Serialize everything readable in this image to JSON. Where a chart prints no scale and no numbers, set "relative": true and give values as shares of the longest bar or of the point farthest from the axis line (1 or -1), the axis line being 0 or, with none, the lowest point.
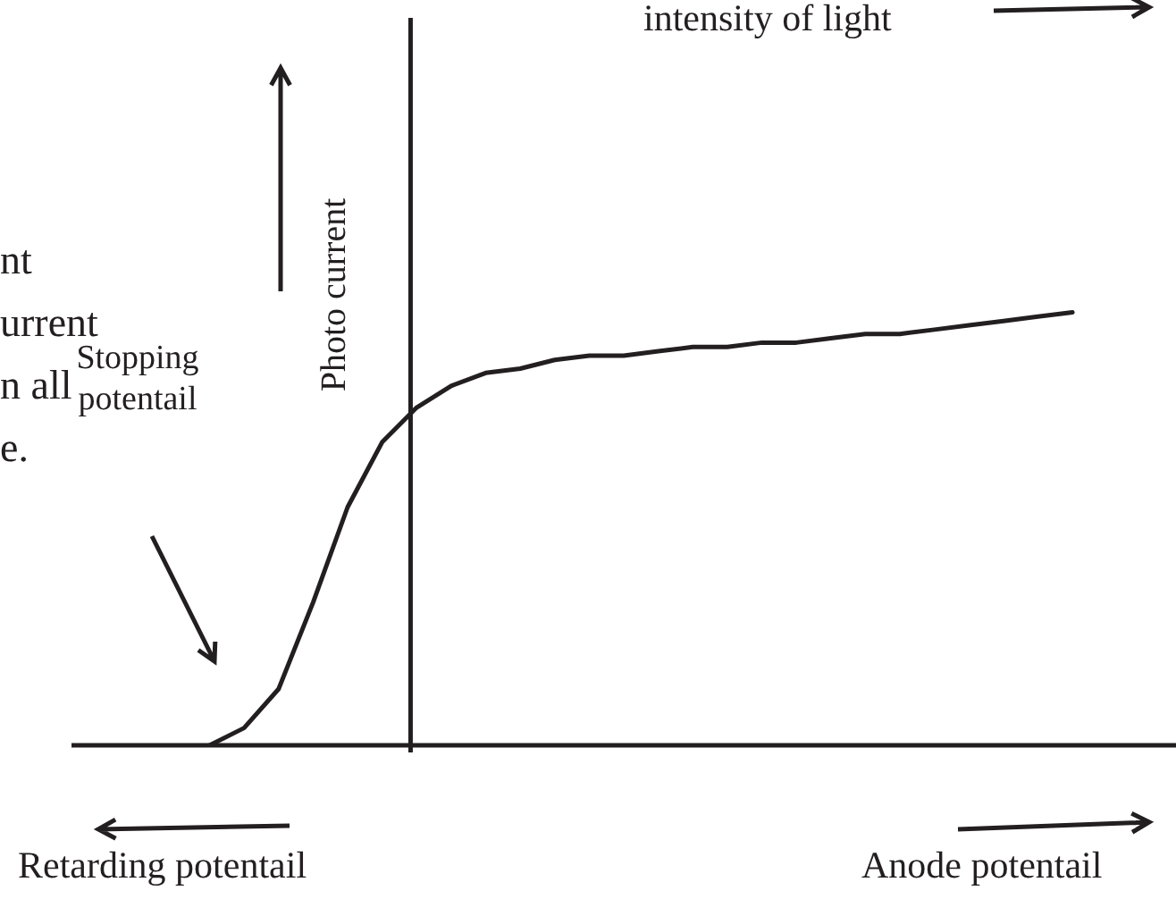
{
  "chart_data": {
    "type": "line",
    "relative": true,
    "ylabel": "Photo current",
    "categories": [
      null,
      null,
      null,
      null,
      null,
      null,
      null,
      null,
      null,
      null,
      null,
      null,
      null,
      null,
      null,
      null,
      null,
      null,
      null,
      null,
      null,
      null,
      null,
      null,
      null,
      null,
      null,
      null,
      null,
      null,
      null,
      null,
      null
    ],
    "series": [
      {
        "color": "#231f20",
        "values": [
          null,
          null,
          null,
          null,
          0,
          0.04,
          0.13,
          0.33,
          0.55,
          0.7,
          0.78,
          0.83,
          0.86,
          0.87,
          0.89,
          0.9,
          0.9,
          0.91,
          0.92,
          0.92,
          0.93,
          0.93,
          0.94,
          0.95,
          0.95,
          0.96,
          0.97,
          0.98,
          0.99,
          1,
          null,
          null,
          null
        ]
      }
    ],
    "legend": false,
    "marker": "none",
    "line_style": "solid",
    "annotations": [
      "intensity of light",
      "nt\nurrent\nn all\ne.",
      "Stopping\npotentail",
      "Retarding potentail",
      "Anode potentail"
    ]
  }
}
